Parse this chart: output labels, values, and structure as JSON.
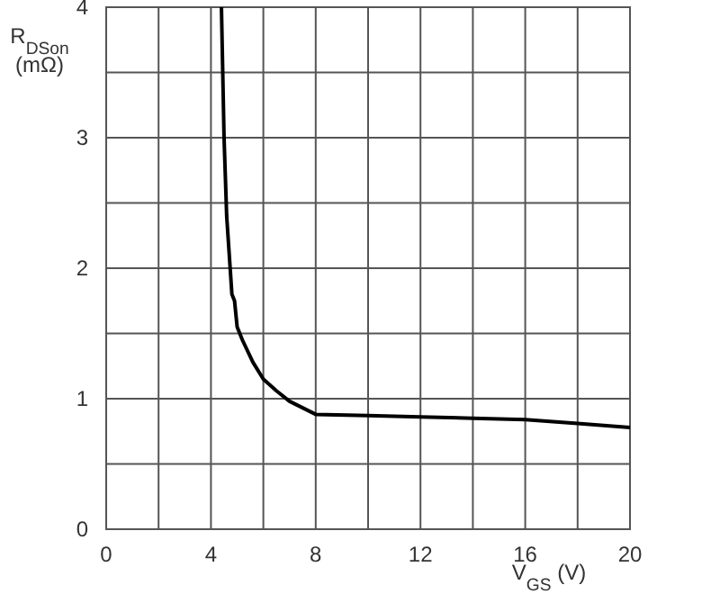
{
  "chart_data": {
    "type": "line",
    "xlabel": "V$_{GS}$ (V)",
    "ylabel": "R$_{DSon}$ (mΩ)",
    "xlim": [
      0,
      20
    ],
    "ylim": [
      0,
      4
    ],
    "xticks": [
      0,
      {
        "value": 2,
        "label": null
      },
      4,
      {
        "value": 6,
        "label": null
      },
      8,
      {
        "value": 10,
        "label": null
      },
      12,
      {
        "value": 14,
        "label": null
      },
      16,
      {
        "value": 18,
        "label": null
      },
      20
    ],
    "yticks": [
      0,
      {
        "value": 0.5,
        "label": null
      },
      1,
      {
        "value": 1.5,
        "label": null
      },
      2,
      {
        "value": 2.5,
        "label": null
      },
      3,
      {
        "value": 3.5,
        "label": null
      },
      4
    ],
    "grid": true,
    "marker": "none",
    "line_style": "solid",
    "series": [
      {
        "color": "#000000",
        "x": [
          4.4,
          4.45,
          4.5,
          4.6,
          4.8,
          4.9,
          5.0,
          5.2,
          5.6,
          6.0,
          6.5,
          7.0,
          8.0,
          10,
          12,
          14,
          16,
          18,
          20
        ],
        "values": [
          4,
          3.5,
          3.0,
          2.4,
          1.8,
          1.75,
          1.55,
          1.45,
          1.28,
          1.15,
          1.06,
          0.98,
          0.88,
          0.87,
          0.86,
          0.85,
          0.84,
          0.81,
          0.78
        ]
      }
    ]
  }
}
